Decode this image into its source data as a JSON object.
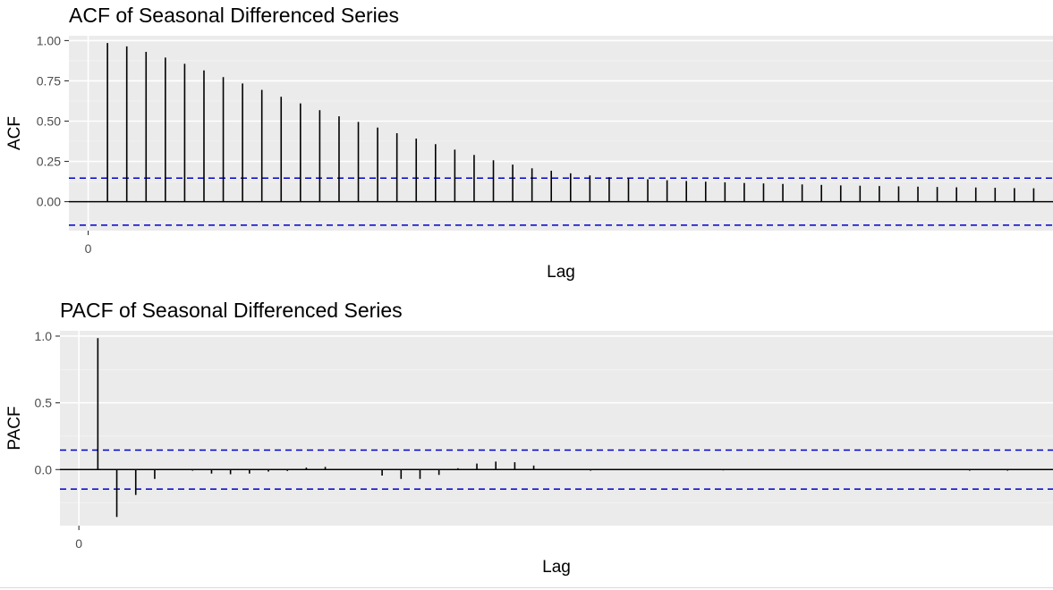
{
  "chart_data": [
    {
      "type": "bar",
      "title": "ACF of Seasonal Differenced Series",
      "xlabel": "Lag",
      "ylabel": "ACF",
      "x_ticks": [
        0
      ],
      "xlim": [
        -1,
        50
      ],
      "y_ticks": [
        0.0,
        0.25,
        0.5,
        0.75,
        1.0
      ],
      "y_tick_labels": [
        "0.00",
        "0.25",
        "0.50",
        "0.75",
        "1.00"
      ],
      "ylim": [
        -0.18,
        1.03
      ],
      "confidence_bound": 0.146,
      "confidence_color": "#0000cc",
      "grid": true,
      "lags": [
        1,
        2,
        3,
        4,
        5,
        6,
        7,
        8,
        9,
        10,
        11,
        12,
        13,
        14,
        15,
        16,
        17,
        18,
        19,
        20,
        21,
        22,
        23,
        24,
        25,
        26,
        27,
        28,
        29,
        30,
        31,
        32,
        33,
        34,
        35,
        36,
        37,
        38,
        39,
        40,
        41,
        42,
        43,
        44,
        45,
        46,
        47,
        48,
        49
      ],
      "values": [
        0.985,
        0.964,
        0.93,
        0.895,
        0.856,
        0.815,
        0.773,
        0.734,
        0.694,
        0.651,
        0.61,
        0.568,
        0.53,
        0.495,
        0.46,
        0.425,
        0.392,
        0.357,
        0.323,
        0.29,
        0.257,
        0.23,
        0.207,
        0.192,
        0.176,
        0.163,
        0.152,
        0.145,
        0.139,
        0.133,
        0.128,
        0.124,
        0.12,
        0.116,
        0.113,
        0.11,
        0.107,
        0.104,
        0.101,
        0.099,
        0.097,
        0.095,
        0.093,
        0.091,
        0.089,
        0.088,
        0.086,
        0.084,
        0.083
      ]
    },
    {
      "type": "bar",
      "title": "PACF of Seasonal Differenced Series",
      "xlabel": "Lag",
      "ylabel": "PACF",
      "x_ticks": [
        0
      ],
      "xlim": [
        -1,
        51.4
      ],
      "y_ticks": [
        0.0,
        0.5,
        1.0
      ],
      "y_tick_labels": [
        "0.0",
        "0.5",
        "1.0"
      ],
      "ylim": [
        -0.42,
        1.04
      ],
      "confidence_bound": 0.146,
      "confidence_color": "#0000cc",
      "grid": true,
      "lags": [
        1,
        2,
        3,
        4,
        5,
        6,
        7,
        8,
        9,
        10,
        11,
        12,
        13,
        14,
        15,
        16,
        17,
        18,
        19,
        20,
        21,
        22,
        23,
        24,
        25,
        26,
        27,
        28,
        29,
        30,
        31,
        32,
        33,
        34,
        35,
        36,
        37,
        38,
        39,
        40,
        41,
        42,
        43,
        44,
        45,
        46,
        47,
        48,
        49,
        50
      ],
      "values": [
        0.985,
        -0.355,
        -0.19,
        -0.07,
        0.0,
        -0.008,
        -0.03,
        -0.035,
        -0.03,
        -0.015,
        -0.01,
        0.015,
        0.02,
        0.005,
        0.0,
        -0.045,
        -0.07,
        -0.07,
        -0.04,
        0.01,
        0.045,
        0.06,
        0.055,
        0.03,
        0.005,
        0.0,
        -0.008,
        0.0,
        0.0,
        0.0,
        0.0,
        0.0,
        0.0,
        -0.006,
        0.0,
        0.0,
        0.0,
        0.0,
        0.0,
        0.0,
        0.0,
        0.0,
        0.0,
        0.0,
        0.0,
        0.0,
        -0.008,
        0.0,
        -0.008,
        0.0
      ]
    }
  ]
}
